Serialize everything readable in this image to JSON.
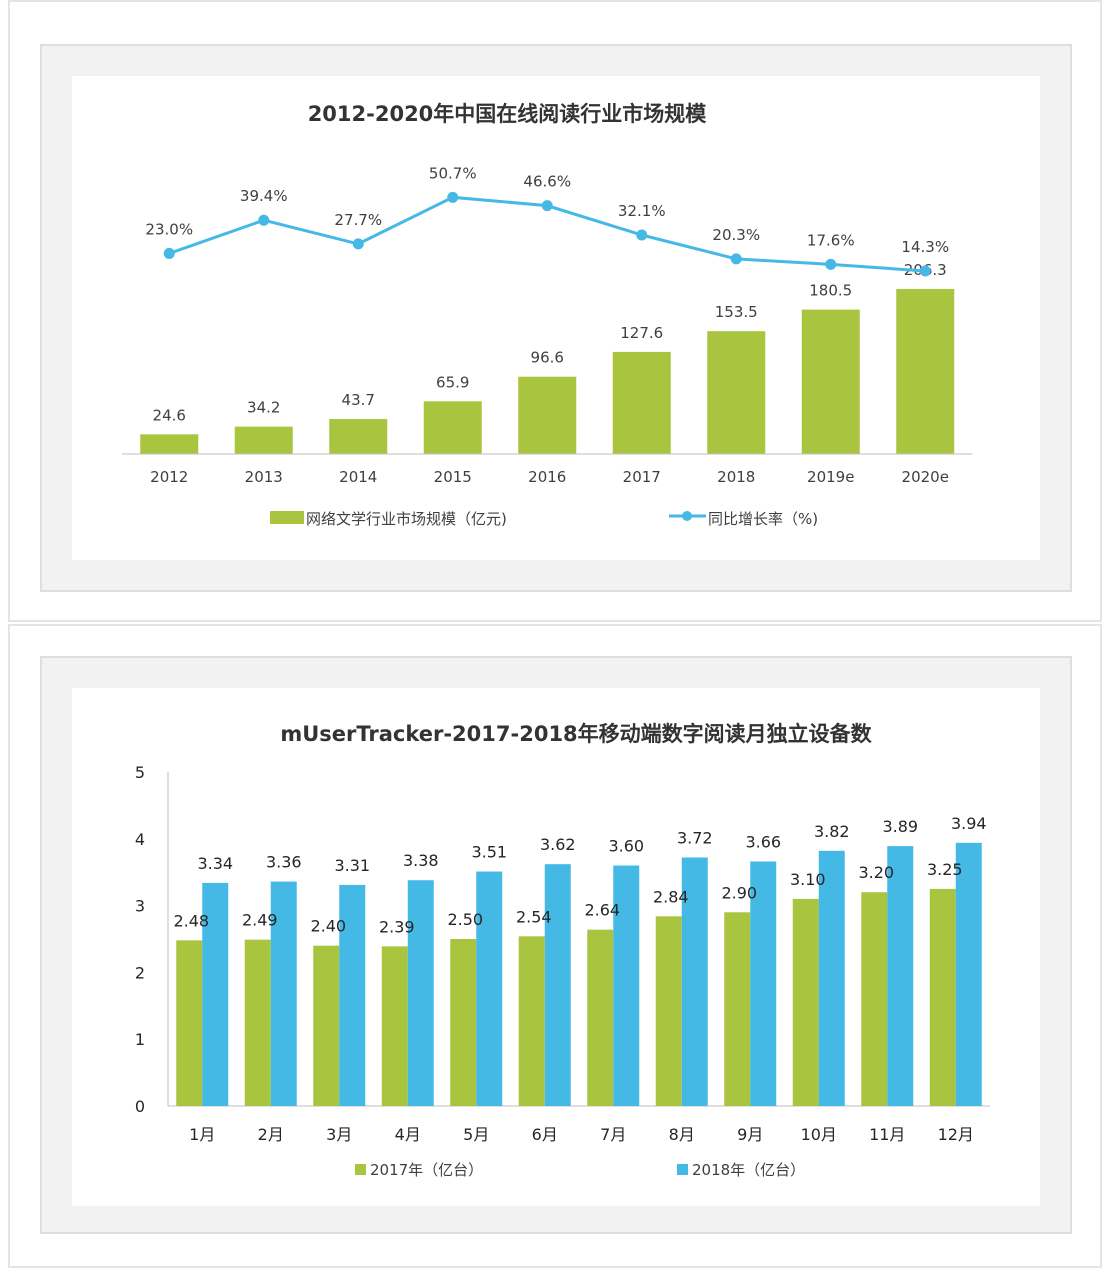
{
  "colors": {
    "green": "#a9c43e",
    "blue": "#45b9e6",
    "line": "#45b9e6"
  },
  "chart_data": [
    {
      "type": "bar",
      "title": "2012-2020年中国在线阅读行业市场规模",
      "categories": [
        "2012",
        "2013",
        "2014",
        "2015",
        "2016",
        "2017",
        "2018",
        "2019e",
        "2020e"
      ],
      "series": [
        {
          "name": "网络文学行业市场规模（亿元)",
          "type": "bar",
          "values": [
            24.6,
            34.2,
            43.7,
            65.9,
            96.6,
            127.6,
            153.5,
            180.5,
            206.3
          ],
          "labels": [
            "24.6",
            "34.2",
            "43.7",
            "65.9",
            "96.6",
            "127.6",
            "153.5",
            "180.5",
            "206.3"
          ]
        },
        {
          "name": "同比增长率（%)",
          "type": "line",
          "values": [
            23.0,
            39.4,
            27.7,
            50.7,
            46.6,
            32.1,
            20.3,
            17.6,
            14.3
          ],
          "labels": [
            "23.0%",
            "39.4%",
            "27.7%",
            "50.7%",
            "46.6%",
            "32.1%",
            "20.3%",
            "17.6%",
            "14.3%"
          ]
        }
      ],
      "legend": "bottom"
    },
    {
      "type": "bar",
      "title": "mUserTracker-2017-2018年移动端数字阅读月独立设备数",
      "categories": [
        "1月",
        "2月",
        "3月",
        "4月",
        "5月",
        "6月",
        "7月",
        "8月",
        "9月",
        "10月",
        "11月",
        "12月"
      ],
      "yticks": [
        "0",
        "1",
        "2",
        "3",
        "4",
        "5"
      ],
      "ylim": [
        0,
        5
      ],
      "series": [
        {
          "name": "2017年（亿台）",
          "values": [
            2.48,
            2.49,
            2.4,
            2.39,
            2.5,
            2.54,
            2.64,
            2.84,
            2.9,
            3.1,
            3.2,
            3.25
          ],
          "labels": [
            "2.48",
            "2.49",
            "2.40",
            "2.39",
            "2.50",
            "2.54",
            "2.64",
            "2.84",
            "2.90",
            "3.10",
            "3.20",
            "3.25"
          ]
        },
        {
          "name": "2018年（亿台）",
          "values": [
            3.34,
            3.36,
            3.31,
            3.38,
            3.51,
            3.62,
            3.6,
            3.72,
            3.66,
            3.82,
            3.89,
            3.94
          ],
          "labels": [
            "3.34",
            "3.36",
            "3.31",
            "3.38",
            "3.51",
            "3.62",
            "3.60",
            "3.72",
            "3.66",
            "3.82",
            "3.89",
            "3.94"
          ]
        }
      ],
      "legend": "bottom"
    }
  ]
}
